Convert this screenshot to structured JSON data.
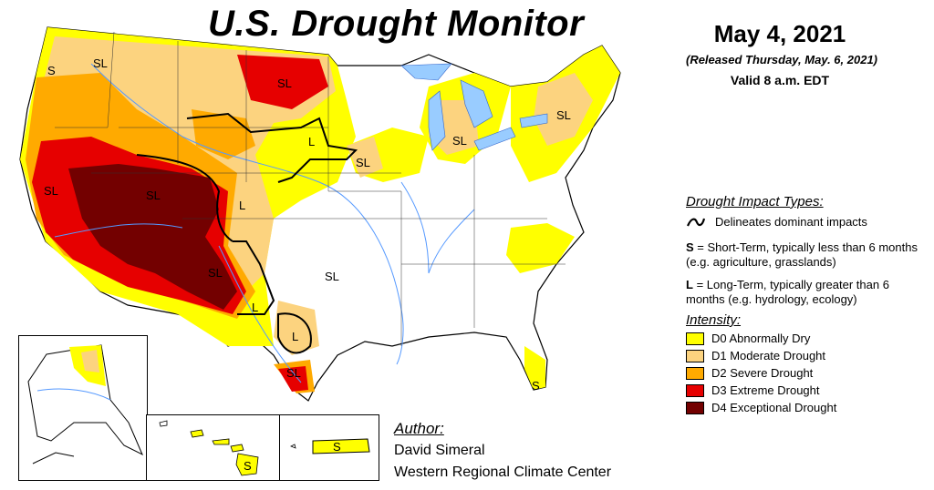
{
  "title": "U.S. Drought Monitor",
  "date": "May 4, 2021",
  "released": "(Released Thursday, May. 6, 2021)",
  "valid": "Valid 8 a.m. EDT",
  "impact": {
    "title": "Drought Impact Types:",
    "delineates": "Delineates dominant impacts",
    "short_term_key": "S",
    "short_term_text": " = Short-Term, typically less than 6 months (e.g. agriculture, grasslands)",
    "long_term_key": "L",
    "long_term_text": " = Long-Term, typically greater than 6 months (e.g. hydrology, ecology)"
  },
  "intensity": {
    "title": "Intensity:",
    "items": [
      {
        "label": "D0 Abnormally Dry",
        "color": "#ffff00"
      },
      {
        "label": "D1 Moderate Drought",
        "color": "#fcd37f"
      },
      {
        "label": "D2 Severe Drought",
        "color": "#ffaa00"
      },
      {
        "label": "D3 Extreme Drought",
        "color": "#e60000"
      },
      {
        "label": "D4 Exceptional Drought",
        "color": "#730000"
      }
    ]
  },
  "author": {
    "title": "Author:",
    "name": "David Simeral",
    "org": "Western Regional Climate Center"
  },
  "map_labels": [
    "S",
    "SL",
    "SL",
    "L",
    "SL",
    "SL",
    "SL",
    "SL",
    "L",
    "SL",
    "L",
    "SL",
    "L",
    "SL",
    "SL",
    "S",
    "S"
  ],
  "colors": {
    "d0": "#ffff00",
    "d1": "#fcd37f",
    "d2": "#ffaa00",
    "d3": "#e60000",
    "d4": "#730000",
    "water": "#99ccff",
    "river": "#5599ff"
  }
}
